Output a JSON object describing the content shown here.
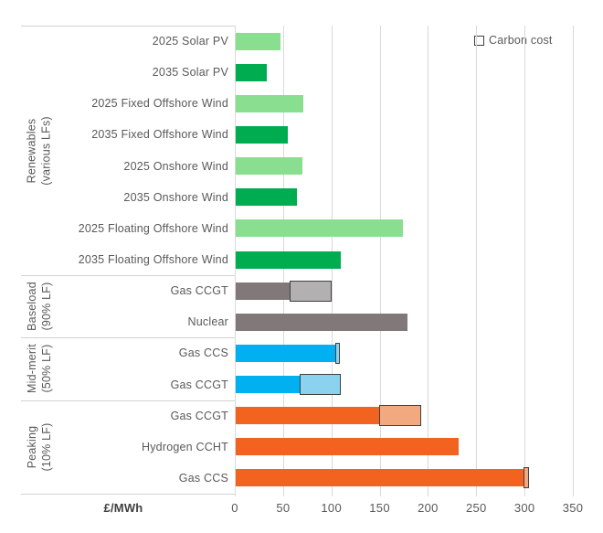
{
  "chart_data": {
    "type": "bar",
    "orientation": "horizontal",
    "title": "",
    "xlabel": "£/MWh",
    "ylabel": "",
    "xlim": [
      0,
      350
    ],
    "x_ticks": [
      0,
      50,
      100,
      150,
      200,
      250,
      300,
      350
    ],
    "grid": true,
    "legend": {
      "label": "Carbon cost",
      "position": "top-right",
      "swatch_fill": "#FFFFFF",
      "swatch_border": "#404040"
    },
    "value_unit": "£/MWh",
    "series_note": "Each bar = levelised cost; outlined lighter segment = carbon cost add-on",
    "groups": [
      {
        "label_line1": "Renewables",
        "label_line2": "(various LFs)",
        "rows": [
          {
            "label": "2025 Solar PV",
            "value": 46,
            "carbon_cost": 0,
            "color": "#8ADE90"
          },
          {
            "label": "2035 Solar PV",
            "value": 32,
            "carbon_cost": 0,
            "color": "#00AC50"
          },
          {
            "label": "2025 Fixed Offshore Wind",
            "value": 70,
            "carbon_cost": 0,
            "color": "#8ADE90"
          },
          {
            "label": "2035 Fixed Offshore Wind",
            "value": 54,
            "carbon_cost": 0,
            "color": "#00AC50"
          },
          {
            "label": "2025 Onshore Wind",
            "value": 69,
            "carbon_cost": 0,
            "color": "#8ADE90"
          },
          {
            "label": "2035 Onshore Wind",
            "value": 63,
            "carbon_cost": 0,
            "color": "#00AC50"
          },
          {
            "label": "2025 Floating Offshore Wind",
            "value": 173,
            "carbon_cost": 0,
            "color": "#8ADE90"
          },
          {
            "label": "2035 Floating Offshore Wind",
            "value": 109,
            "carbon_cost": 0,
            "color": "#00AC50"
          }
        ]
      },
      {
        "label_line1": "Baseload",
        "label_line2": "(90% LF)",
        "rows": [
          {
            "label": "Gas CCGT",
            "value": 57,
            "carbon_cost": 41,
            "color": "#817979",
            "carbon_color": "#B2B0B0"
          },
          {
            "label": "Nuclear",
            "value": 178,
            "carbon_cost": 0,
            "color": "#817979"
          }
        ]
      },
      {
        "label_line1": "Mid-merit",
        "label_line2": "(50% LF)",
        "rows": [
          {
            "label": "Gas CCS",
            "value": 104,
            "carbon_cost": 3,
            "color": "#00B0F0",
            "carbon_color": "#8BD2EF"
          },
          {
            "label": "Gas CCGT",
            "value": 67,
            "carbon_cost": 41,
            "color": "#00B0F0",
            "carbon_color": "#8BD2EF"
          }
        ]
      },
      {
        "label_line1": "Peaking",
        "label_line2": "(10% LF)",
        "rows": [
          {
            "label": "Gas CCGT",
            "value": 149,
            "carbon_cost": 42,
            "color": "#F26320",
            "carbon_color": "#F2A980"
          },
          {
            "label": "Hydrogen CCHT",
            "value": 231,
            "carbon_cost": 0,
            "color": "#F26320"
          },
          {
            "label": "Gas CCS",
            "value": 299,
            "carbon_cost": 4,
            "color": "#F26320",
            "carbon_color": "#F2A980"
          }
        ]
      }
    ],
    "palette": {
      "renewable_2025": "#8ADE90",
      "renewable_2035": "#00AC50",
      "baseload": "#817979",
      "baseload_carbon": "#B2B0B0",
      "mid_merit": "#00B0F0",
      "mid_merit_carbon": "#8BD2EF",
      "peaking": "#F26320",
      "peaking_carbon": "#F2A980",
      "carbon_outline": "#404040",
      "gridline": "#D9D9D9",
      "text": "#595959"
    }
  }
}
